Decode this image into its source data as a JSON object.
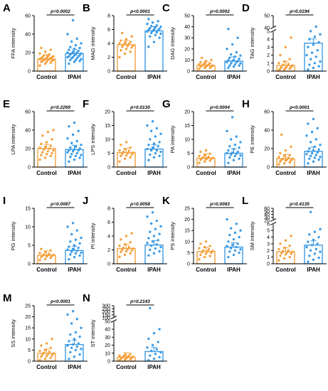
{
  "colors": {
    "control": "#F5A03C",
    "ipah": "#3C9BE6",
    "axis": "#000000"
  },
  "group_labels": [
    "Control",
    "IPAH"
  ],
  "chart_data": [
    {
      "type": "bar",
      "panel_letter": "A",
      "ylabel": "FFA intensity",
      "ylim": [
        0,
        60
      ],
      "yticks": [
        0,
        20,
        40,
        60
      ],
      "categories": [
        "Control",
        "IPAH"
      ],
      "values": [
        13,
        19
      ],
      "p_label": "p=0.0002",
      "control_points": [
        6,
        8,
        9,
        10,
        10,
        11,
        11,
        12,
        12,
        12,
        13,
        13,
        13,
        14,
        14,
        14,
        15,
        15,
        16,
        16,
        17,
        18,
        19,
        21,
        23,
        25
      ],
      "ipah_points": [
        8,
        10,
        11,
        12,
        12,
        13,
        14,
        14,
        15,
        15,
        16,
        16,
        17,
        17,
        18,
        18,
        19,
        19,
        20,
        20,
        21,
        22,
        23,
        24,
        25,
        26,
        28,
        30,
        32,
        35,
        40,
        55
      ]
    },
    {
      "type": "bar",
      "panel_letter": "B",
      "ylabel": "MAG intensity",
      "ylim": [
        0,
        8
      ],
      "yticks": [
        0,
        2,
        4,
        6,
        8
      ],
      "categories": [
        "Control",
        "IPAH"
      ],
      "values": [
        3.8,
        5.8
      ],
      "p_label": "p<0.0001",
      "control_points": [
        2.0,
        2.5,
        2.8,
        3.0,
        3.2,
        3.4,
        3.5,
        3.6,
        3.7,
        3.8,
        3.9,
        4.0,
        4.1,
        4.2,
        4.4,
        4.6,
        5.0,
        5.5
      ],
      "ipah_points": [
        3.5,
        4.2,
        4.8,
        5.0,
        5.2,
        5.4,
        5.5,
        5.6,
        5.7,
        5.8,
        5.9,
        6.0,
        6.0,
        6.1,
        6.2,
        6.3,
        6.4,
        6.5,
        6.6,
        6.8,
        7.0,
        7.2,
        7.5
      ]
    },
    {
      "type": "bar",
      "panel_letter": "C",
      "ylabel": "DAG intensity",
      "ylim": [
        0,
        50
      ],
      "yticks": [
        0,
        10,
        20,
        30,
        40,
        50
      ],
      "categories": [
        "Control",
        "IPAH"
      ],
      "values": [
        5,
        9
      ],
      "p_label": "p=0.0002",
      "control_points": [
        2,
        3,
        3,
        4,
        4,
        4,
        5,
        5,
        5,
        6,
        6,
        6,
        7,
        7,
        8,
        9,
        10,
        12
      ],
      "ipah_points": [
        3,
        4,
        5,
        5,
        6,
        7,
        7,
        8,
        8,
        9,
        9,
        10,
        10,
        11,
        12,
        13,
        14,
        15,
        17,
        20,
        24,
        30,
        38
      ]
    },
    {
      "type": "bar",
      "panel_letter": "D",
      "ylabel": "TAG intensity",
      "ylim": [
        0,
        50
      ],
      "yticks": [
        0,
        1,
        2,
        3,
        4,
        5,
        40,
        50
      ],
      "axis_break": true,
      "categories": [
        "Control",
        "IPAH"
      ],
      "values": [
        0.7,
        3.5
      ],
      "p_label": "p=0.0194",
      "control_points": [
        0.1,
        0.2,
        0.3,
        0.3,
        0.4,
        0.5,
        0.5,
        0.6,
        0.7,
        0.8,
        0.9,
        1.0,
        1.2,
        1.5,
        2.0,
        3.0,
        4.2
      ],
      "ipah_points": [
        0.2,
        0.4,
        0.6,
        0.8,
        1.0,
        1.2,
        1.5,
        1.8,
        2.0,
        2.3,
        2.6,
        3.0,
        3.3,
        3.6,
        4.0,
        4.3,
        4.6,
        5.0,
        41
      ]
    },
    {
      "type": "bar",
      "panel_letter": "E",
      "ylabel": "LPA intensity",
      "ylim": [
        0,
        60
      ],
      "yticks": [
        0,
        20,
        40,
        60
      ],
      "categories": [
        "Control",
        "IPAH"
      ],
      "values": [
        20,
        19
      ],
      "p_label": "p=0.2269",
      "control_points": [
        8,
        10,
        12,
        13,
        14,
        15,
        16,
        17,
        18,
        19,
        20,
        21,
        22,
        23,
        25,
        27,
        30,
        34,
        38,
        40
      ],
      "ipah_points": [
        6,
        8,
        10,
        11,
        12,
        13,
        14,
        15,
        16,
        17,
        18,
        18,
        19,
        20,
        21,
        22,
        24,
        26,
        28,
        31,
        35,
        39,
        44,
        48
      ]
    },
    {
      "type": "bar",
      "panel_letter": "F",
      "ylabel": "LPS intensity",
      "ylim": [
        0,
        20
      ],
      "yticks": [
        0,
        5,
        10,
        15,
        20
      ],
      "categories": [
        "Control",
        "IPAH"
      ],
      "values": [
        5.2,
        6.5
      ],
      "p_label": "p=0.0130",
      "control_points": [
        2,
        3,
        3.5,
        4,
        4.2,
        4.5,
        4.8,
        5,
        5.2,
        5.5,
        5.8,
        6,
        6.5,
        7,
        8,
        9
      ],
      "ipah_points": [
        2.5,
        3.5,
        4,
        4.5,
        5,
        5.5,
        6,
        6,
        6.5,
        7,
        7.5,
        8,
        8.5,
        9,
        10,
        11,
        12,
        13,
        14,
        15,
        16.5
      ]
    },
    {
      "type": "bar",
      "panel_letter": "G",
      "ylabel": "PA intensity",
      "ylim": [
        0,
        20
      ],
      "yticks": [
        0,
        5,
        10,
        15,
        20
      ],
      "categories": [
        "Control",
        "IPAH"
      ],
      "values": [
        3.2,
        5
      ],
      "p_label": "p=0.0004",
      "control_points": [
        1.5,
        2,
        2.3,
        2.6,
        2.8,
        3,
        3.1,
        3.2,
        3.3,
        3.5,
        3.7,
        4,
        4.3,
        4.8,
        5.5,
        6
      ],
      "ipah_points": [
        1.5,
        2.5,
        3,
        3.5,
        4,
        4.2,
        4.5,
        4.8,
        5,
        5.2,
        5.5,
        6,
        6.5,
        7,
        7.5,
        8,
        9,
        10,
        11,
        13,
        18
      ]
    },
    {
      "type": "bar",
      "panel_letter": "H",
      "ylabel": "PE intensity",
      "ylim": [
        0,
        60
      ],
      "yticks": [
        0,
        20,
        40,
        60
      ],
      "categories": [
        "Control",
        "IPAH"
      ],
      "values": [
        9,
        17
      ],
      "p_label": "p<0.0001",
      "control_points": [
        3,
        4,
        5,
        6,
        7,
        7,
        8,
        8,
        9,
        9,
        10,
        11,
        12,
        13,
        15,
        18,
        22,
        35
      ],
      "ipah_points": [
        4,
        6,
        8,
        9,
        10,
        11,
        12,
        13,
        14,
        15,
        16,
        17,
        18,
        19,
        20,
        22,
        24,
        27,
        30,
        34,
        38,
        42,
        47,
        52
      ]
    },
    {
      "type": "bar",
      "panel_letter": "I",
      "ylabel": "PG intensity",
      "ylim": [
        0,
        15
      ],
      "yticks": [
        0,
        5,
        10,
        15
      ],
      "categories": [
        "Control",
        "IPAH"
      ],
      "values": [
        2.3,
        3.6
      ],
      "p_label": "p=0.0087",
      "control_points": [
        1,
        1.3,
        1.6,
        1.8,
        2,
        2.1,
        2.2,
        2.3,
        2.4,
        2.5,
        2.7,
        2.9,
        3.2,
        3.6,
        4
      ],
      "ipah_points": [
        1.2,
        1.8,
        2.2,
        2.5,
        2.8,
        3,
        3.2,
        3.5,
        3.8,
        4,
        4.3,
        4.6,
        5,
        5.5,
        6,
        6.5,
        7,
        8,
        9,
        10,
        11
      ]
    },
    {
      "type": "bar",
      "panel_letter": "J",
      "ylabel": "PI intensity",
      "ylim": [
        0,
        8
      ],
      "yticks": [
        0,
        2,
        4,
        6,
        8
      ],
      "categories": [
        "Control",
        "IPAH"
      ],
      "values": [
        2.2,
        2.7
      ],
      "p_label": "p=0.0058",
      "control_points": [
        1,
        1.3,
        1.5,
        1.7,
        1.8,
        1.9,
        2,
        2.1,
        2.2,
        2.3,
        2.4,
        2.6,
        2.8,
        3.1,
        3.5,
        4,
        4.4
      ],
      "ipah_points": [
        1.2,
        1.5,
        1.8,
        2,
        2.2,
        2.4,
        2.6,
        2.8,
        3,
        3.2,
        3.4,
        3.7,
        4,
        4.3,
        4.6,
        5,
        5.4,
        5.8,
        6.2,
        6.8,
        7.4
      ]
    },
    {
      "type": "bar",
      "panel_letter": "K",
      "ylabel": "PS intensity",
      "ylim": [
        0,
        25
      ],
      "yticks": [
        0,
        5,
        10,
        15,
        20,
        25
      ],
      "categories": [
        "Control",
        "IPAH"
      ],
      "values": [
        5.5,
        7.5
      ],
      "p_label": "p=0.0083",
      "control_points": [
        2,
        3,
        3.5,
        4,
        4.5,
        5,
        5.2,
        5.5,
        5.8,
        6,
        6.5,
        7,
        7.5,
        8,
        9,
        10
      ],
      "ipah_points": [
        3,
        4,
        5,
        5.5,
        6,
        6.5,
        7,
        7.5,
        8,
        8.5,
        9,
        10,
        11,
        12,
        13,
        14,
        15,
        16,
        18,
        20
      ]
    },
    {
      "type": "bar",
      "panel_letter": "L",
      "ylabel": "SM intensity",
      "ylim": [
        0,
        60
      ],
      "yticks": [
        0,
        1,
        2,
        3,
        4,
        5,
        6,
        20,
        30,
        40,
        50,
        60
      ],
      "axis_break": true,
      "categories": [
        "Control",
        "IPAH"
      ],
      "values": [
        1.8,
        2.8
      ],
      "p_label": "p=0.4135",
      "control_points": [
        0.5,
        0.8,
        1,
        1.2,
        1.4,
        1.5,
        1.6,
        1.7,
        1.8,
        1.9,
        2,
        2.2,
        2.4,
        2.7,
        3,
        3.5,
        4.2
      ],
      "ipah_points": [
        0.3,
        0.6,
        0.9,
        1.2,
        1.5,
        1.8,
        2,
        2.2,
        2.5,
        2.8,
        3,
        3.3,
        3.6,
        4,
        4.4,
        4.8,
        5.2,
        48
      ]
    },
    {
      "type": "bar",
      "panel_letter": "M",
      "ylabel": "SS intensity",
      "ylim": [
        0,
        25
      ],
      "yticks": [
        0,
        5,
        10,
        15,
        20,
        25
      ],
      "categories": [
        "Control",
        "IPAH"
      ],
      "values": [
        3.5,
        7.5
      ],
      "p_label": "p<0.0001",
      "control_points": [
        0.5,
        1,
        1.5,
        2,
        2.3,
        2.6,
        3,
        3.2,
        3.5,
        3.8,
        4.2,
        4.6,
        5,
        6,
        7,
        8,
        10
      ],
      "ipah_points": [
        1,
        2,
        3,
        4,
        5,
        5.5,
        6,
        6.5,
        7,
        7.5,
        8,
        9,
        10,
        11,
        12,
        13,
        15,
        17,
        19,
        21,
        22.5
      ]
    },
    {
      "type": "bar",
      "panel_letter": "N",
      "ylabel": "ST intensity",
      "ylim": [
        0,
        300
      ],
      "yticks": [
        0,
        10,
        20,
        30,
        40,
        50,
        100,
        150,
        200,
        250,
        300
      ],
      "axis_break": true,
      "categories": [
        "Control",
        "IPAH"
      ],
      "values": [
        5,
        12
      ],
      "p_label": "p=0.2143",
      "control_points": [
        1,
        2,
        2.5,
        3,
        3.5,
        4,
        4.5,
        5,
        5.5,
        6,
        6.5,
        7,
        8,
        9
      ],
      "ipah_points": [
        1,
        3,
        5,
        7,
        9,
        11,
        13,
        15,
        17,
        20,
        24,
        28,
        35,
        40,
        260
      ]
    }
  ]
}
